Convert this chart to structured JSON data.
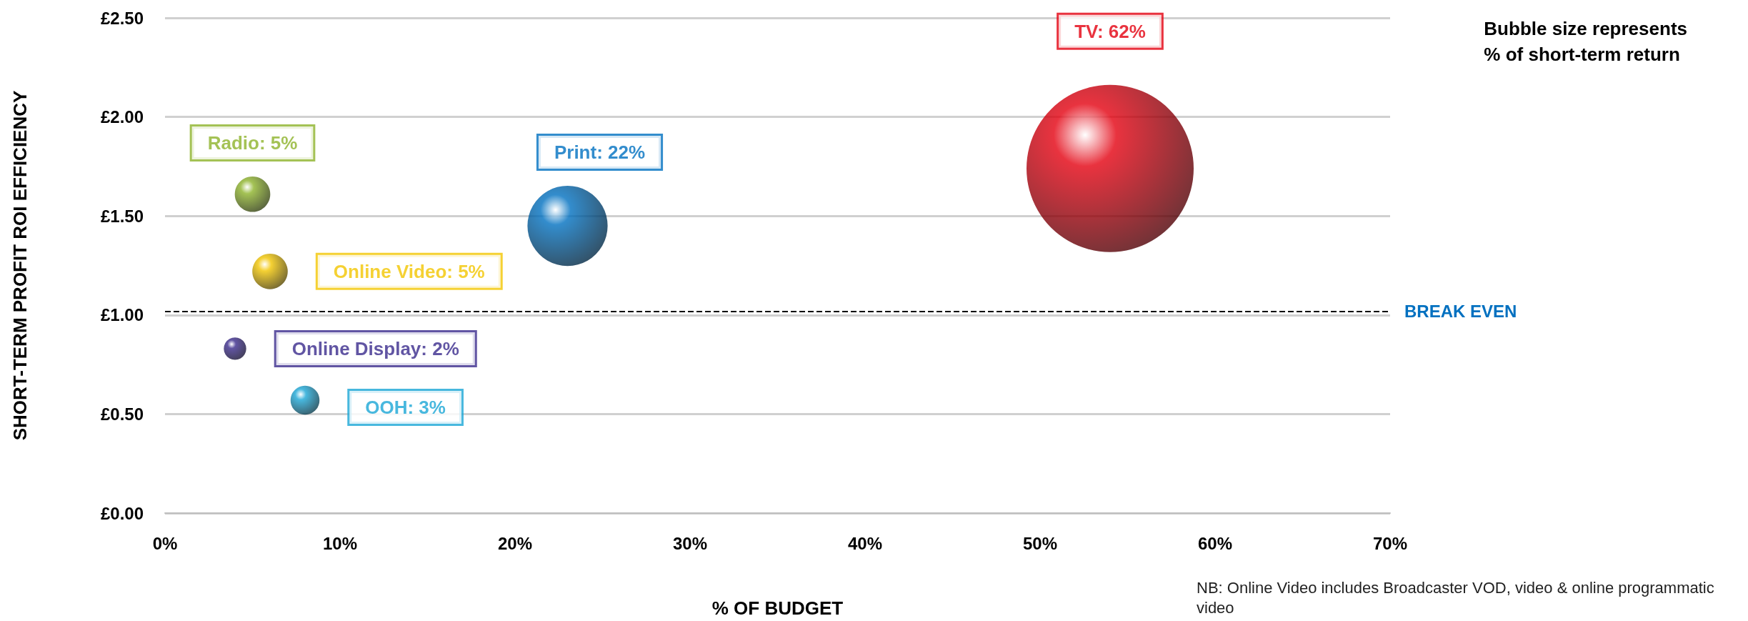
{
  "chart_data": {
    "type": "bubble",
    "xlabel": "% OF BUDGET",
    "ylabel": "SHORT-TERM PROFIT ROI EFFICIENCY",
    "series": [
      {
        "name": "Radio: 5%",
        "color": "#8db32a",
        "x": [
          5
        ],
        "values": [
          1.61
        ],
        "sizes": [
          0.045
        ]
      },
      {
        "name": "Online Video: 5%",
        "color": "#f2c500",
        "x": [
          6
        ],
        "values": [
          1.22
        ],
        "sizes": [
          0.045
        ]
      },
      {
        "name": "Online Display: 2%",
        "color": "#3a2a8c",
        "x": [
          4
        ],
        "values": [
          0.83
        ],
        "sizes": [
          0.018
        ]
      },
      {
        "name": "OOH: 3%",
        "color": "#1aa6d6",
        "x": [
          8
        ],
        "values": [
          0.57
        ],
        "sizes": [
          0.03
        ]
      },
      {
        "name": "Print: 22%",
        "color": "#0070c0",
        "x": [
          23
        ],
        "values": [
          1.45
        ],
        "sizes": [
          0.23
        ]
      },
      {
        "name": "TV: 62%",
        "color": "#e3000f",
        "x": [
          54
        ],
        "values": [
          1.74
        ],
        "sizes": [
          1
        ]
      }
    ],
    "xlim": [
      0,
      70
    ],
    "xticks": [
      {
        "value": 0,
        "label": "0%"
      },
      {
        "value": 10,
        "label": "10%"
      },
      {
        "value": 20,
        "label": "20%"
      },
      {
        "value": 30,
        "label": "30%"
      },
      {
        "value": 40,
        "label": "40%"
      },
      {
        "value": 50,
        "label": "50%"
      },
      {
        "value": 60,
        "label": "60%"
      },
      {
        "value": 70,
        "label": "70%"
      }
    ],
    "ylim": [
      0,
      2.5
    ],
    "yticks": [
      {
        "value": 0,
        "label": "£0.00"
      },
      {
        "value": 0.5,
        "label": "£0.50"
      },
      {
        "value": 1,
        "label": "£1.00"
      },
      {
        "value": 1.5,
        "label": "£1.50"
      },
      {
        "value": 2,
        "label": "£2.00"
      },
      {
        "value": 2.5,
        "label": "£2.50"
      }
    ],
    "ref_lines": [
      {
        "axis": "y",
        "value": 1.02,
        "label": "BREAK EVEN",
        "color": "#000000",
        "line_style": "dashed"
      }
    ],
    "annotations": [
      "Bubble size represents\n% of short-term return",
      "NB: Online Video includes Broadcaster VOD, video & online programmatic video"
    ],
    "grid": "y",
    "legend": false,
    "marker": "circle"
  }
}
